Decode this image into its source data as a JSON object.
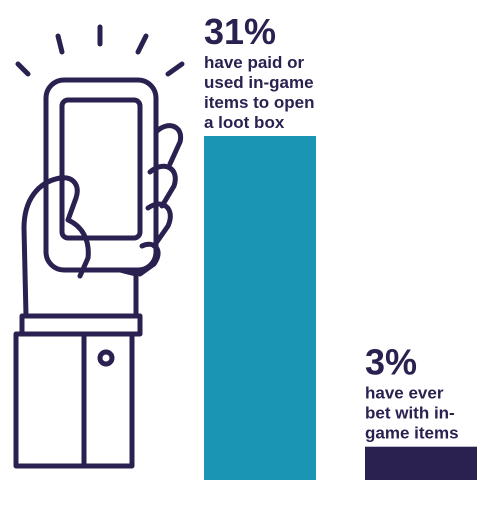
{
  "chart_data": {
    "type": "bar",
    "ylim": [
      0,
      31
    ],
    "grid": false,
    "legend": "none",
    "bars": [
      {
        "value": 31,
        "value_label": "31%",
        "description_lines": [
          "have paid or",
          "used in-game",
          "items to open",
          "a loot box"
        ],
        "color": "#1a96b4"
      },
      {
        "value": 3,
        "value_label": "3%",
        "description_lines": [
          "have ever",
          "bet with in-",
          "game items"
        ],
        "color": "#2b2150"
      }
    ]
  },
  "illustration": {
    "icon": "hand-holding-phone-icon",
    "stroke_color": "#2b2150"
  }
}
